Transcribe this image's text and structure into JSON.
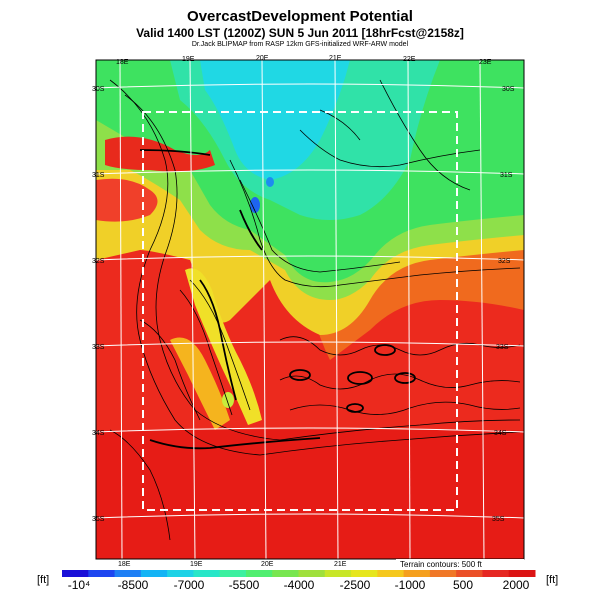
{
  "header": {
    "title": "OvercastDevelopment Potential",
    "valid_line": "Valid 1400 LST (1200Z) SUN 5 Jun 2011 [18hrFcst@2158z]",
    "credit_line": "Dr.Jack BLIPMAP from RASP 12km GFS-initialized WRF-ARW model"
  },
  "map": {
    "lon_labels": [
      "18E",
      "19E",
      "20E",
      "21E",
      "22E",
      "23E"
    ],
    "lat_labels": [
      "30S",
      "31S",
      "32S",
      "33S",
      "34S",
      "35S"
    ],
    "terrain_note": "Terrain contours: 500 ft"
  },
  "colorbar": {
    "unit_left": "[ft]",
    "unit_right": "[ft]",
    "tick_labels": [
      "-10⁴",
      "-8500",
      "-7000",
      "-5500",
      "-4000",
      "-2500",
      "-1000",
      "500",
      "2000"
    ],
    "colors": [
      "#1a10d8",
      "#1e46f0",
      "#1e7ff5",
      "#14b4f5",
      "#1ed2e6",
      "#28e6c8",
      "#3cf0a0",
      "#50ee70",
      "#78e650",
      "#a0e03c",
      "#c8e628",
      "#e6e61e",
      "#f5c81e",
      "#f5a01e",
      "#f07828",
      "#eb5028",
      "#e62823",
      "#dc1414"
    ]
  },
  "colors": {
    "deep_red": "#e61c16",
    "red": "#f03a1e",
    "orange": "#f5781e",
    "yellow": "#f0e628",
    "green": "#2ee05a",
    "cyan": "#1ed2e6",
    "blue": "#1e64f0"
  }
}
